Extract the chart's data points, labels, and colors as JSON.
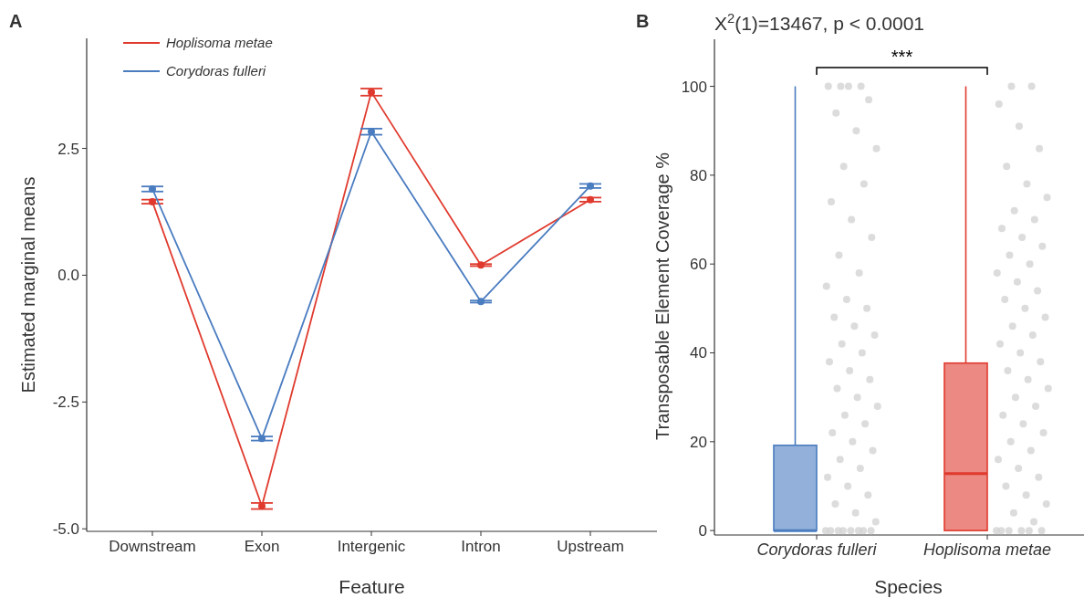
{
  "chart_data": [
    {
      "type": "line",
      "annotations": [
        "A"
      ],
      "xlabel": "Feature",
      "ylabel": "Estimated marginal means",
      "categories": [
        "Downstream",
        "Exon",
        "Intergenic",
        "Intron",
        "Upstream"
      ],
      "series": [
        {
          "name": "Hoplisoma metae",
          "color": "#e03a2e",
          "values": [
            1.45,
            -4.55,
            3.61,
            0.2,
            1.49
          ],
          "errors": [
            0.04,
            0.06,
            0.07,
            0.02,
            0.04
          ]
        },
        {
          "name": "Corydoras fulleri",
          "color": "#4a7cc0",
          "values": [
            1.7,
            -3.22,
            2.83,
            -0.52,
            1.76
          ],
          "errors": [
            0.05,
            0.04,
            0.06,
            0.02,
            0.04
          ]
        }
      ],
      "ylim": [
        -5.05,
        4.67
      ],
      "yticks": [
        {
          "value": -5,
          "label": "-5.0"
        },
        {
          "value": -2.5,
          "label": "-2.5"
        },
        {
          "value": 0,
          "label": "0.0"
        },
        2.5
      ],
      "marker": "circle",
      "legend": "top left",
      "grid": false
    },
    {
      "type": "box",
      "title": "X$^{2}$(1)=13467, p < 0.0001",
      "annotations": [
        "B",
        "***"
      ],
      "xlabel": "Species",
      "ylabel": "Transposable Element Coverage %",
      "categories": [
        "Corydoras fulleri",
        "Hoplisoma metae"
      ],
      "colors": [
        "#4a7cc0",
        "#e03a2e"
      ],
      "boxes": [
        {
          "low": 0,
          "q1": 0,
          "median": 0,
          "q3": 19.2,
          "high": 100
        },
        {
          "low": 0,
          "q1": 0,
          "median": 12.8,
          "q3": 37.7,
          "high": 100
        }
      ],
      "series": [
        {
          "type": "scatter",
          "color": "#d3d3d3",
          "x": [
            "Corydoras fulleri",
            "Corydoras fulleri",
            "Corydoras fulleri",
            "Corydoras fulleri",
            "Corydoras fulleri",
            "Corydoras fulleri",
            "Corydoras fulleri",
            "Corydoras fulleri",
            "Corydoras fulleri",
            "Corydoras fulleri",
            "Corydoras fulleri",
            "Corydoras fulleri",
            "Corydoras fulleri",
            "Corydoras fulleri",
            "Corydoras fulleri",
            "Corydoras fulleri",
            "Corydoras fulleri",
            "Corydoras fulleri",
            "Corydoras fulleri",
            "Corydoras fulleri",
            "Corydoras fulleri",
            "Corydoras fulleri",
            "Corydoras fulleri",
            "Corydoras fulleri",
            "Corydoras fulleri",
            "Corydoras fulleri",
            "Corydoras fulleri",
            "Corydoras fulleri",
            "Corydoras fulleri",
            "Corydoras fulleri",
            "Corydoras fulleri",
            "Corydoras fulleri",
            "Corydoras fulleri",
            "Corydoras fulleri",
            "Corydoras fulleri",
            "Corydoras fulleri",
            "Corydoras fulleri",
            "Corydoras fulleri",
            "Corydoras fulleri",
            "Corydoras fulleri",
            "Corydoras fulleri",
            "Corydoras fulleri",
            "Corydoras fulleri",
            "Corydoras fulleri",
            "Corydoras fulleri",
            "Corydoras fulleri",
            "Corydoras fulleri",
            "Corydoras fulleri",
            "Corydoras fulleri",
            "Corydoras fulleri"
          ],
          "values": [
            0,
            0,
            0,
            0,
            0,
            0,
            0,
            0,
            2,
            4,
            6,
            8,
            10,
            12,
            14,
            16,
            18,
            20,
            22,
            24,
            26,
            28,
            30,
            32,
            34,
            36,
            38,
            40,
            42,
            44,
            46,
            48,
            50,
            52,
            55,
            58,
            62,
            66,
            70,
            74,
            78,
            82,
            86,
            90,
            94,
            97,
            100,
            100,
            100,
            100
          ]
        },
        {
          "type": "scatter",
          "color": "#d3d3d3",
          "x": [
            "Hoplisoma metae",
            "Hoplisoma metae",
            "Hoplisoma metae",
            "Hoplisoma metae",
            "Hoplisoma metae",
            "Hoplisoma metae",
            "Hoplisoma metae",
            "Hoplisoma metae",
            "Hoplisoma metae",
            "Hoplisoma metae",
            "Hoplisoma metae",
            "Hoplisoma metae",
            "Hoplisoma metae",
            "Hoplisoma metae",
            "Hoplisoma metae",
            "Hoplisoma metae",
            "Hoplisoma metae",
            "Hoplisoma metae",
            "Hoplisoma metae",
            "Hoplisoma metae",
            "Hoplisoma metae",
            "Hoplisoma metae",
            "Hoplisoma metae",
            "Hoplisoma metae",
            "Hoplisoma metae",
            "Hoplisoma metae",
            "Hoplisoma metae",
            "Hoplisoma metae",
            "Hoplisoma metae",
            "Hoplisoma metae",
            "Hoplisoma metae",
            "Hoplisoma metae",
            "Hoplisoma metae",
            "Hoplisoma metae",
            "Hoplisoma metae",
            "Hoplisoma metae",
            "Hoplisoma metae",
            "Hoplisoma metae",
            "Hoplisoma metae",
            "Hoplisoma metae",
            "Hoplisoma metae",
            "Hoplisoma metae",
            "Hoplisoma metae",
            "Hoplisoma metae",
            "Hoplisoma metae",
            "Hoplisoma metae",
            "Hoplisoma metae",
            "Hoplisoma metae",
            "Hoplisoma metae",
            "Hoplisoma metae"
          ],
          "values": [
            0,
            0,
            0,
            0,
            0,
            0,
            2,
            4,
            6,
            8,
            10,
            12,
            14,
            16,
            18,
            20,
            22,
            24,
            26,
            28,
            30,
            32,
            34,
            36,
            38,
            40,
            42,
            44,
            46,
            48,
            50,
            52,
            54,
            56,
            58,
            60,
            62,
            64,
            66,
            68,
            70,
            72,
            75,
            78,
            82,
            86,
            91,
            96,
            100,
            100
          ]
        }
      ],
      "ylim": [
        -1,
        110.6
      ],
      "yticks": [
        0,
        20,
        40,
        60,
        80,
        100
      ],
      "grid": false
    }
  ]
}
